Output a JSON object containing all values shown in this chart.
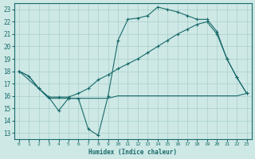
{
  "bg_color": "#cde8e5",
  "grid_color": "#aacfcc",
  "line_color": "#1a6b6b",
  "xlabel": "Humidex (Indice chaleur)",
  "xlim": [
    -0.5,
    23.5
  ],
  "ylim": [
    12.5,
    23.5
  ],
  "yticks": [
    13,
    14,
    15,
    16,
    17,
    18,
    19,
    20,
    21,
    22,
    23
  ],
  "xticks": [
    0,
    1,
    2,
    3,
    4,
    5,
    6,
    7,
    8,
    9,
    10,
    11,
    12,
    13,
    14,
    15,
    16,
    17,
    18,
    19,
    20,
    21,
    22,
    23
  ],
  "line1_x": [
    0,
    1,
    2,
    3,
    4,
    5,
    6,
    7,
    8,
    9,
    10,
    11,
    12,
    13,
    14,
    15,
    16,
    17,
    18,
    19,
    20,
    21,
    22,
    23
  ],
  "line1_y": [
    18.0,
    17.6,
    16.6,
    15.8,
    15.8,
    15.8,
    15.8,
    15.8,
    15.8,
    15.8,
    16.0,
    16.0,
    16.0,
    16.0,
    16.0,
    16.0,
    16.0,
    16.0,
    16.0,
    16.0,
    16.0,
    16.0,
    16.0,
    16.2
  ],
  "line2_x": [
    0,
    1,
    2,
    3,
    4,
    5,
    6,
    7,
    8,
    9,
    10,
    11,
    12,
    13,
    14,
    15,
    16,
    17,
    18,
    19,
    20,
    21,
    22,
    23
  ],
  "line2_y": [
    18.0,
    17.6,
    16.6,
    15.9,
    15.9,
    15.9,
    16.2,
    16.6,
    17.3,
    17.7,
    18.2,
    18.6,
    19.0,
    19.5,
    20.0,
    20.5,
    21.0,
    21.4,
    21.8,
    22.0,
    21.0,
    19.0,
    17.5,
    16.2
  ],
  "line3_x": [
    0,
    2,
    3,
    4,
    5,
    6,
    7,
    8,
    9,
    10,
    11,
    12,
    13,
    14,
    15,
    16,
    17,
    18,
    19,
    20,
    21,
    22,
    23
  ],
  "line3_y": [
    18.0,
    16.6,
    15.9,
    14.8,
    15.8,
    15.8,
    13.3,
    12.8,
    16.0,
    20.5,
    22.2,
    22.3,
    22.5,
    23.2,
    23.0,
    22.8,
    22.5,
    22.2,
    22.2,
    21.2,
    19.0,
    17.5,
    16.2
  ]
}
